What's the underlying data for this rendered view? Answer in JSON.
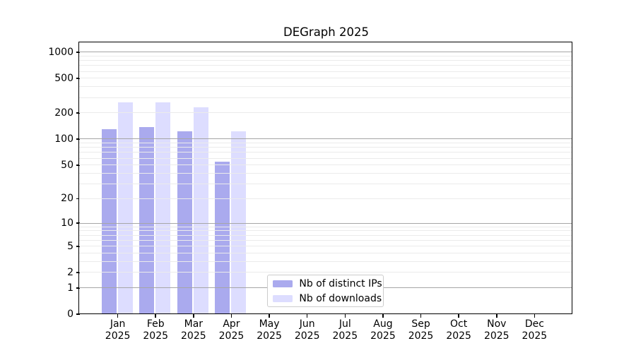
{
  "chart_data": {
    "type": "bar",
    "title": "DEGraph 2025",
    "year_label": "2025",
    "categories": [
      "Jan",
      "Feb",
      "Mar",
      "Apr",
      "May",
      "Jun",
      "Jul",
      "Aug",
      "Sep",
      "Oct",
      "Nov",
      "Dec"
    ],
    "series": [
      {
        "key": "distinct-ips",
        "name": "Nb of distinct IPs",
        "color": "#aaaaee",
        "values": [
          128,
          136,
          122,
          54,
          null,
          null,
          null,
          null,
          null,
          null,
          null,
          null
        ]
      },
      {
        "key": "downloads",
        "name": "Nb of downloads",
        "color": "#ddddff",
        "values": [
          263,
          263,
          229,
          122,
          null,
          null,
          null,
          null,
          null,
          null,
          null,
          null
        ]
      }
    ],
    "y_axis": {
      "scale": "log1p",
      "tick_labels": [
        0,
        1,
        2,
        5,
        10,
        20,
        50,
        100,
        200,
        500,
        1000
      ],
      "major_gridlines": [
        1,
        10,
        100,
        1000
      ],
      "minor_gridlines": [
        2,
        3,
        4,
        5,
        6,
        7,
        8,
        9,
        20,
        30,
        40,
        50,
        60,
        70,
        80,
        90,
        200,
        300,
        400,
        500,
        600,
        700,
        800,
        900
      ],
      "range_top": 1258
    },
    "x_axis": {
      "tick_count": 12
    },
    "legend": {
      "position": "inside-bottom-center",
      "entries": [
        "Nb of distinct IPs",
        "Nb of downloads"
      ]
    },
    "colors": {
      "major_grid": "#a6a6a6",
      "minor_grid": "#ebebeb",
      "spine": "#000000",
      "text": "#000000",
      "background": "#ffffff"
    }
  }
}
